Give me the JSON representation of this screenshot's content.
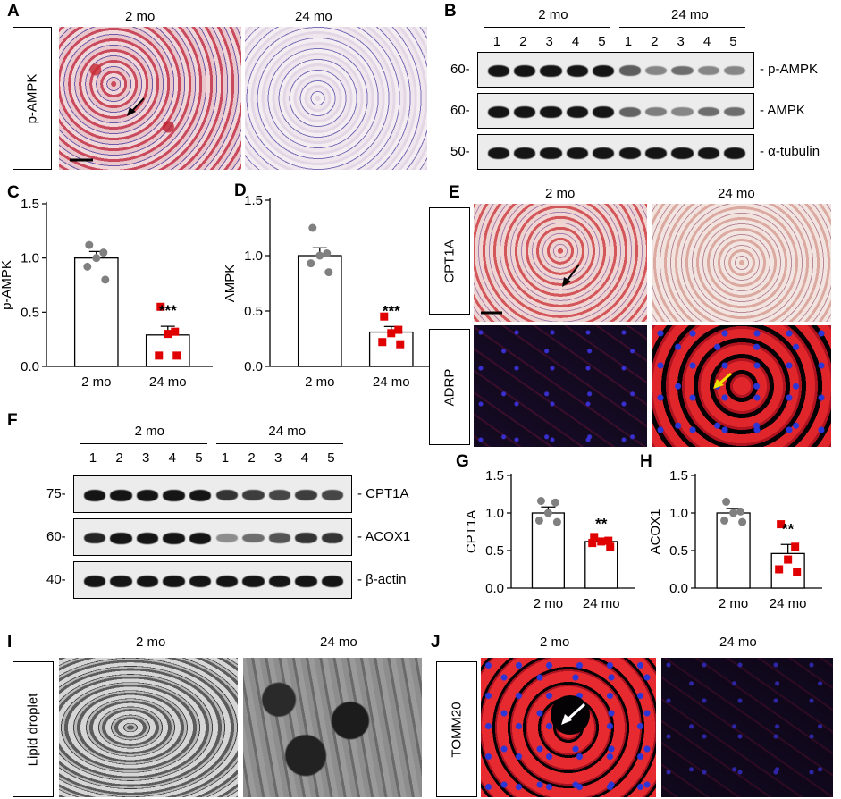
{
  "panels": {
    "A": {
      "label": "A",
      "col1": "2 mo",
      "col2": "24 mo",
      "row_label": "p-AMPK"
    },
    "B": {
      "label": "B",
      "group1": "2 mo",
      "group2": "24 mo",
      "lanes": [
        "1",
        "2",
        "3",
        "4",
        "5",
        "1",
        "2",
        "3",
        "4",
        "5"
      ],
      "rows": [
        {
          "mw": "60-",
          "name": "- p-AMPK",
          "intensity": [
            1,
            1,
            1,
            1,
            1,
            0.55,
            0.3,
            0.45,
            0.3,
            0.3
          ]
        },
        {
          "mw": "60-",
          "name": "- AMPK",
          "intensity": [
            1,
            1,
            1,
            1,
            1,
            0.5,
            0.35,
            0.3,
            0.45,
            0.45
          ]
        },
        {
          "mw": "50-",
          "name": "- α-tubulin",
          "intensity": [
            1,
            1,
            1,
            1,
            1,
            1,
            1,
            1,
            1,
            1
          ]
        }
      ]
    },
    "C": {
      "label": "C"
    },
    "D": {
      "label": "D"
    },
    "E": {
      "label": "E",
      "col1": "2 mo",
      "col2": "24 mo",
      "row1_label": "CPT1A",
      "row2_label": "ADRP"
    },
    "F": {
      "label": "F",
      "group1": "2 mo",
      "group2": "24 mo",
      "lanes": [
        "1",
        "2",
        "3",
        "4",
        "5",
        "1",
        "2",
        "3",
        "4",
        "5"
      ],
      "rows": [
        {
          "mw": "75-",
          "name": "- CPT1A",
          "intensity": [
            1,
            1,
            1,
            1,
            1,
            0.8,
            0.75,
            0.7,
            0.75,
            0.7
          ]
        },
        {
          "mw": "60-",
          "name": "- ACOX1",
          "intensity": [
            0.9,
            1,
            1,
            1,
            1,
            0.25,
            0.45,
            0.6,
            0.8,
            0.8
          ]
        },
        {
          "mw": "40-",
          "name": "- β-actin",
          "intensity": [
            1,
            1,
            1,
            1,
            1,
            1,
            1,
            1,
            1,
            1
          ]
        }
      ]
    },
    "G": {
      "label": "G"
    },
    "H": {
      "label": "H"
    },
    "I": {
      "label": "I",
      "col1": "2 mo",
      "col2": "24 mo",
      "row_label": "Lipid droplet"
    },
    "J": {
      "label": "J",
      "col1": "2 mo",
      "col2": "24 mo",
      "row_label": "TOMM20"
    }
  },
  "colors": {
    "control_dot": "#808080",
    "aged_dot": "#e00000",
    "bar_edge": "#000000"
  },
  "chart_data": [
    {
      "type": "bar",
      "panel": "C",
      "ylabel": "p-AMPK",
      "ylim": [
        0,
        1.5
      ],
      "yticks": [
        "0.0",
        "0.5",
        "1.0",
        "1.5"
      ],
      "categories": [
        "2 mo",
        "24 mo"
      ],
      "values": [
        1.0,
        0.29
      ],
      "sem": [
        0.06,
        0.08
      ],
      "significance": "***",
      "points": [
        [
          1.12,
          1.05,
          1.0,
          0.92,
          0.8
        ],
        [
          0.55,
          0.32,
          0.3,
          0.1,
          0.1
        ]
      ]
    },
    {
      "type": "bar",
      "panel": "D",
      "ylabel": "AMPK",
      "ylim": [
        0,
        1.5
      ],
      "yticks": [
        "0.0",
        "0.5",
        "1.0",
        "1.5"
      ],
      "categories": [
        "2 mo",
        "24 mo"
      ],
      "values": [
        1.0,
        0.31
      ],
      "sem": [
        0.07,
        0.05
      ],
      "significance": "***",
      "points": [
        [
          1.25,
          1.02,
          1.0,
          0.93,
          0.85
        ],
        [
          0.45,
          0.33,
          0.3,
          0.22,
          0.2
        ]
      ]
    },
    {
      "type": "bar",
      "panel": "G",
      "ylabel": "CPT1A",
      "ylim": [
        0,
        1.5
      ],
      "yticks": [
        "0.0",
        "0.5",
        "1.0",
        "1.5"
      ],
      "categories": [
        "2 mo",
        "24 mo"
      ],
      "values": [
        1.0,
        0.62
      ],
      "sem": [
        0.08,
        0.03
      ],
      "significance": "**",
      "points": [
        [
          1.16,
          1.14,
          1.0,
          0.9,
          0.88
        ],
        [
          0.68,
          0.63,
          0.62,
          0.6,
          0.55
        ]
      ]
    },
    {
      "type": "bar",
      "panel": "H",
      "ylabel": "ACOX1",
      "ylim": [
        0,
        1.5
      ],
      "yticks": [
        "0.0",
        "0.5",
        "1.0",
        "1.5"
      ],
      "categories": [
        "2 mo",
        "24 mo"
      ],
      "values": [
        1.0,
        0.46
      ],
      "sem": [
        0.06,
        0.12
      ],
      "significance": "**",
      "points": [
        [
          1.15,
          1.02,
          1.0,
          0.9,
          0.88
        ],
        [
          0.85,
          0.55,
          0.38,
          0.25,
          0.22
        ]
      ]
    }
  ]
}
